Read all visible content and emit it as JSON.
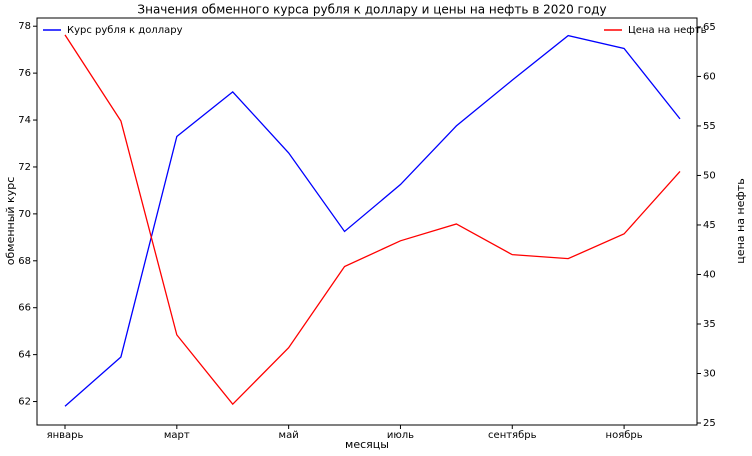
{
  "chart_data": {
    "type": "line",
    "title": "Значения обменного курса рубля к доллару и цены на нефть в 2020 году",
    "x_label": "месяцы",
    "y_label": "обменный курс",
    "y2_label": "цена на нефть",
    "categories": [
      "январь",
      null,
      "март",
      null,
      "май",
      null,
      "июль",
      null,
      "сентябрь",
      null,
      "ноябрь",
      null
    ],
    "ylim": [
      61.0,
      78.35
    ],
    "yticks": [
      62,
      64,
      66,
      68,
      70,
      72,
      74,
      76,
      78
    ],
    "y2lim": [
      24.8,
      65.9
    ],
    "y2ticks": [
      25,
      30,
      35,
      40,
      45,
      50,
      55,
      60,
      65
    ],
    "grid": false,
    "series": [
      {
        "name": "Курс рубля к доллару",
        "color": "#0000ff",
        "legend_loc": "upper left",
        "values": [
          61.8,
          63.9,
          73.3,
          75.2,
          72.6,
          69.25,
          71.25,
          73.75,
          75.7,
          77.6,
          77.05,
          74.05
        ]
      },
      {
        "name": "Цена на нефть",
        "color": "#ff0000",
        "axis": "y2",
        "legend_loc": "upper right",
        "values": [
          64.2,
          55.5,
          33.9,
          26.9,
          32.6,
          40.8,
          43.4,
          45.1,
          42.0,
          41.6,
          44.1,
          50.4
        ]
      }
    ]
  }
}
